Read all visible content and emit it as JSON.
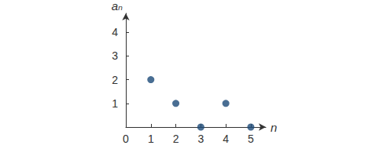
{
  "chart_data": {
    "type": "scatter",
    "x_label": "n",
    "y_label": "aₙ",
    "x": [
      1,
      2,
      3,
      4,
      5
    ],
    "values": [
      2,
      1,
      0,
      1,
      0
    ],
    "color": "#1c4a78",
    "marker": "circle",
    "xlim": [
      0,
      5.6
    ],
    "xticks": [
      0,
      1,
      2,
      3,
      4,
      5
    ],
    "ylim": [
      0,
      4.8
    ],
    "yticks": [
      1,
      2,
      3,
      4
    ],
    "grid": false
  }
}
